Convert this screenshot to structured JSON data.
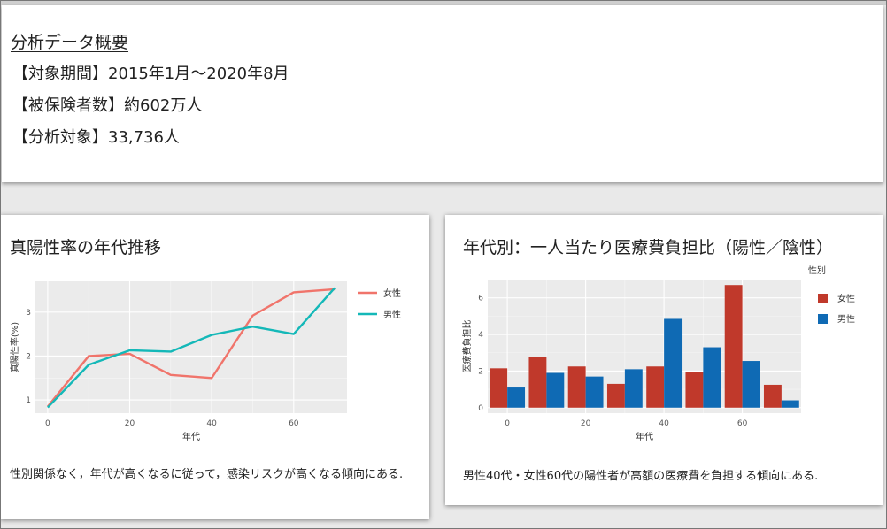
{
  "summary": {
    "title": "分析データ概要",
    "period": "【対象期間】2015年1月～2020年8月",
    "insured": "【被保険者数】約602万人",
    "target": "【分析対象】33,736人"
  },
  "left_card": {
    "title": "真陽性率の年代推移",
    "note": "性別関係なく，年代が高くなるに従って，感染リスクが高くなる傾向にある."
  },
  "right_card": {
    "title": "年代別：一人当たり医療費負担比（陽性／陰性）",
    "note": "男性40代・女性60代の陽性者が高額の医療費を負担する傾向にある."
  },
  "colors": {
    "female_line": "#f0746b",
    "male_line": "#14b8b8",
    "female_bar": "#c0392b",
    "male_bar": "#0f6ab4",
    "panel_bg": "#ebebeb"
  },
  "chart_data": [
    {
      "type": "line",
      "title": "",
      "xlabel": "年代",
      "ylabel": "真陽性率(%)",
      "x": [
        0,
        10,
        20,
        30,
        40,
        50,
        60,
        70
      ],
      "xticks": [
        "0",
        "20",
        "40",
        "60"
      ],
      "yticks": [
        "1",
        "2",
        "3"
      ],
      "xlim": [
        -3,
        73
      ],
      "ylim": [
        0.7,
        3.7
      ],
      "grid": true,
      "legend": "right",
      "series": [
        {
          "name": "女性",
          "values": [
            0.85,
            2.0,
            2.05,
            1.57,
            1.5,
            2.92,
            3.45,
            3.52
          ]
        },
        {
          "name": "男性",
          "values": [
            0.83,
            1.8,
            2.13,
            2.1,
            2.48,
            2.67,
            2.5,
            3.55
          ]
        }
      ]
    },
    {
      "type": "bar",
      "title": "",
      "xlabel": "年代",
      "ylabel": "医療費負担比",
      "x": [
        0,
        10,
        20,
        30,
        40,
        50,
        60,
        70
      ],
      "xticks": [
        "0",
        "20",
        "40",
        "60"
      ],
      "yticks": [
        "0",
        "2",
        "4",
        "6"
      ],
      "xlim": [
        -5,
        75
      ],
      "ylim": [
        -0.3,
        7.0
      ],
      "grid": true,
      "legend_title": "性別",
      "legend": "right",
      "series": [
        {
          "name": "女性",
          "values": [
            2.15,
            2.75,
            2.25,
            1.3,
            2.25,
            1.95,
            6.7,
            1.25
          ]
        },
        {
          "name": "男性",
          "values": [
            1.1,
            1.9,
            1.7,
            2.1,
            4.85,
            3.3,
            2.55,
            0.4
          ]
        }
      ]
    }
  ]
}
